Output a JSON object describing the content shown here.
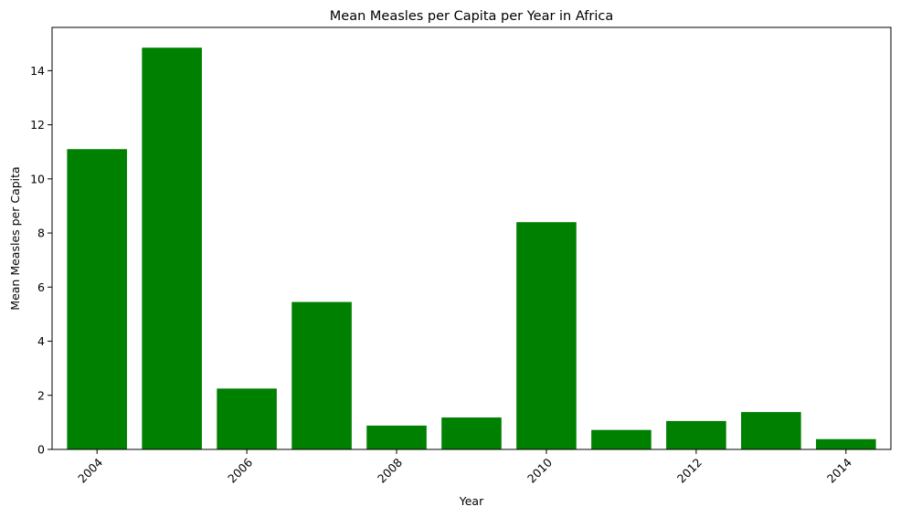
{
  "chart_data": {
    "type": "bar",
    "title": "Mean Measles per Capita per Year in Africa",
    "xlabel": "Year",
    "ylabel": "Mean Measles per Capita",
    "categories": [
      2004,
      2005,
      2006,
      2007,
      2008,
      2009,
      2010,
      2011,
      2012,
      2013,
      2014
    ],
    "values": [
      11.1,
      14.85,
      2.25,
      5.45,
      0.88,
      1.18,
      8.4,
      0.72,
      1.05,
      1.38,
      0.38
    ],
    "x_ticks": [
      "2004",
      "2006",
      "2008",
      "2010",
      "2012",
      "2014"
    ],
    "y_ticks": [
      "0",
      "2",
      "4",
      "6",
      "8",
      "10",
      "12",
      "14"
    ],
    "ylim": [
      0,
      15.6
    ],
    "xlim": [
      2003.4,
      2014.6
    ],
    "grid": false,
    "bar_color": "#008000"
  }
}
